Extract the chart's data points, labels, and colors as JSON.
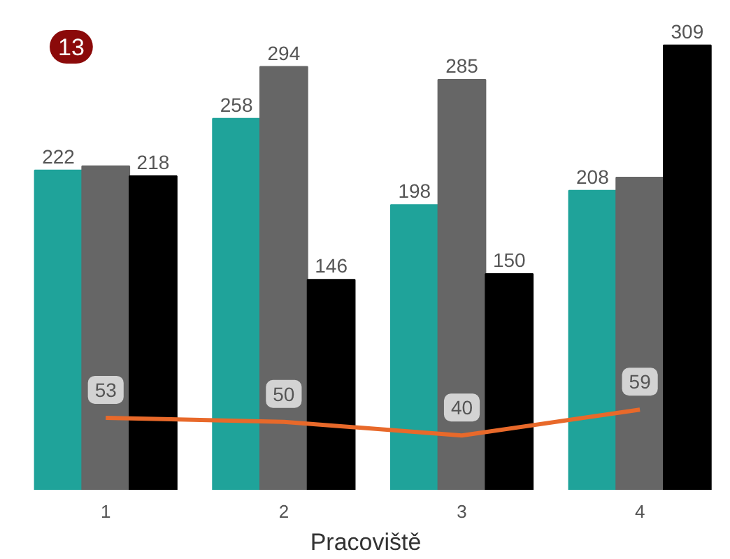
{
  "chart_data": {
    "type": "bar",
    "xlabel": "Pracoviště",
    "categories": [
      "1",
      "2",
      "3",
      "4"
    ],
    "series": [
      {
        "color": "#1fa39a",
        "values": [
          222,
          258,
          198,
          208
        ],
        "value_labels": [
          "222",
          "258",
          "198",
          "208"
        ]
      },
      {
        "color": "#666666",
        "values": [
          225,
          294,
          285,
          217
        ],
        "value_labels": [
          null,
          "294",
          "285",
          null
        ]
      },
      {
        "color": "#000000",
        "values": [
          218,
          146,
          150,
          309
        ],
        "value_labels": [
          "218",
          "146",
          "150",
          "309"
        ]
      },
      {
        "type": "line",
        "axis": "y2",
        "color": "#e8692a",
        "values": [
          53,
          50,
          40,
          59
        ],
        "value_labels": [
          "53",
          "50",
          "40",
          "59"
        ]
      }
    ],
    "tick_labels": "x",
    "grid": false,
    "marker": "none",
    "annotations": [
      "13"
    ]
  }
}
